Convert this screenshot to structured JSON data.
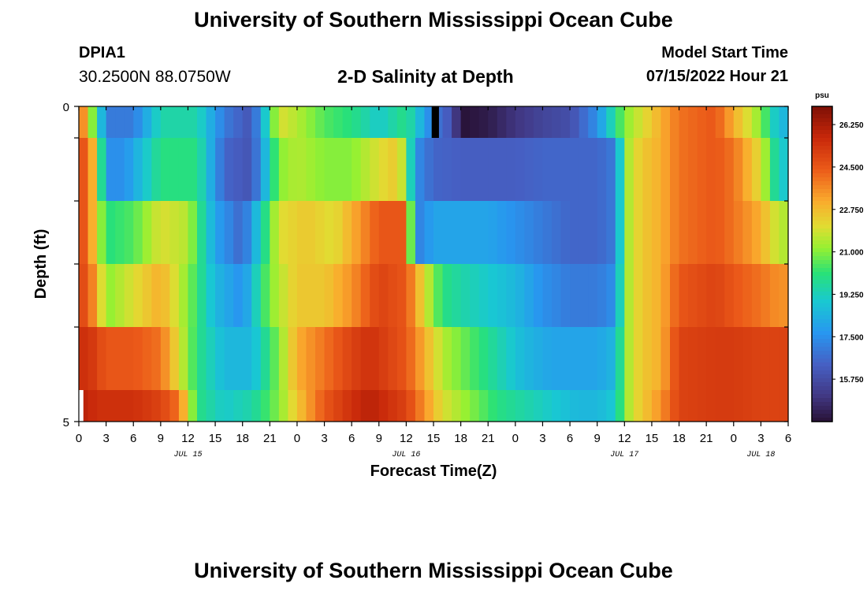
{
  "header": {
    "title": "University of Southern Mississippi Ocean Cube",
    "station": "DPIA1",
    "coords": "30.2500N  88.0750W",
    "subtitle": "2-D Salinity at Depth",
    "model_start_label": "Model Start Time",
    "model_start_value": "07/15/2022 Hour 21"
  },
  "footer": {
    "title": "University of Southern Mississippi Ocean Cube"
  },
  "chart_data": {
    "type": "heatmap",
    "title": "2-D Salinity at Depth",
    "xlabel": "Forecast Time(Z)",
    "ylabel": "Depth (ft)",
    "y_ticks": [
      "0",
      "5"
    ],
    "ylim": [
      0,
      5
    ],
    "x_tick_labels": [
      "0",
      "3",
      "6",
      "9",
      "12",
      "15",
      "18",
      "21",
      "0",
      "3",
      "6",
      "9",
      "12",
      "15",
      "18",
      "21",
      "0",
      "3",
      "6",
      "9",
      "12",
      "15",
      "18",
      "21",
      "0",
      "3",
      "6"
    ],
    "x_hours_range": [
      0,
      78
    ],
    "date_labels": [
      {
        "text": "JUL 15",
        "hour": 12
      },
      {
        "text": "JUL 16",
        "hour": 36
      },
      {
        "text": "JUL 17",
        "hour": 60
      },
      {
        "text": "JUL 18",
        "hour": 75
      }
    ],
    "colorbar": {
      "unit": "psu",
      "min": 14.0,
      "max": 27.0,
      "tick_labels": [
        "26.250",
        "24.500",
        "22.750",
        "21.000",
        "19.250",
        "17.500",
        "15.750"
      ],
      "tick_values": [
        26.25,
        24.5,
        22.75,
        21.0,
        19.25,
        17.5,
        15.75
      ]
    },
    "layers": [
      {
        "depth_range": [
          0.0,
          0.5
        ],
        "hours": [
          0,
          1,
          2,
          3,
          6,
          9,
          13,
          16,
          19,
          22,
          24,
          27,
          30,
          33,
          36,
          38,
          39,
          41,
          42,
          45,
          48,
          51,
          54,
          57,
          60,
          61,
          62,
          64,
          66,
          70,
          72,
          75,
          77,
          78
        ],
        "values": [
          25,
          22,
          20,
          17,
          17,
          19.5,
          19.5,
          17,
          16,
          22,
          21.5,
          20.5,
          20,
          19,
          20,
          18,
          17,
          16,
          14,
          14.3,
          15,
          15.5,
          15.8,
          17.5,
          21,
          21.5,
          22,
          23,
          24,
          24.5,
          23,
          21,
          18.5,
          18.5
        ]
      },
      {
        "depth_range": [
          0.5,
          1.5
        ],
        "hours": [
          0,
          1,
          2,
          3,
          5,
          9,
          13,
          16,
          19,
          22,
          24,
          27,
          30,
          33,
          35,
          36,
          37,
          39,
          42,
          45,
          48,
          51,
          54,
          57,
          59,
          60,
          61,
          62,
          64,
          66,
          70,
          72,
          75,
          77,
          78
        ],
        "values": [
          25,
          24,
          22,
          17.5,
          17.5,
          20,
          20,
          16.5,
          16,
          21,
          21.5,
          21,
          21,
          22,
          22.5,
          21,
          17.5,
          16.5,
          16.3,
          16.3,
          16.3,
          16.5,
          16.5,
          16.5,
          17,
          21,
          22,
          22.5,
          23,
          24,
          24.5,
          24,
          22,
          19,
          19
        ]
      },
      {
        "depth_range": [
          1.5,
          2.5
        ],
        "hours": [
          0,
          1,
          2,
          3,
          6,
          9,
          12,
          15,
          18,
          22,
          25,
          28,
          30,
          33,
          36,
          37,
          39,
          42,
          45,
          48,
          51,
          54,
          57,
          59,
          60,
          61,
          62,
          64,
          66,
          70,
          72,
          75,
          77,
          78
        ],
        "values": [
          25,
          24,
          22,
          20,
          20.5,
          22,
          21.5,
          18,
          16.5,
          22,
          22.5,
          22,
          23,
          24.5,
          24.5,
          17,
          18,
          18,
          18,
          17.5,
          17,
          16.5,
          16.5,
          17,
          21,
          22,
          22.5,
          23,
          24,
          24.5,
          24,
          23,
          21.5,
          21.5
        ]
      },
      {
        "depth_range": [
          2.5,
          3.5
        ],
        "hours": [
          0,
          1,
          2,
          3,
          6,
          9,
          12,
          15,
          18,
          21,
          24,
          27,
          30,
          33,
          36,
          38,
          40,
          42,
          45,
          48,
          51,
          54,
          57,
          59,
          60,
          61,
          62,
          64,
          66,
          70,
          72,
          75,
          77,
          78
        ],
        "values": [
          25,
          24.5,
          23,
          21,
          22,
          23,
          21,
          18.5,
          17.5,
          21,
          22.5,
          22.5,
          23.5,
          25,
          24.5,
          22,
          20,
          19.5,
          19,
          18.5,
          17.5,
          17,
          17,
          17.5,
          21,
          22,
          22.5,
          23,
          24.5,
          25,
          24.5,
          24,
          23.5,
          23.5
        ]
      },
      {
        "depth_range": [
          3.5,
          4.5
        ],
        "hours": [
          0,
          1,
          2,
          3,
          6,
          9,
          11,
          13,
          16,
          19,
          22,
          24,
          27,
          30,
          32,
          36,
          38,
          40,
          43,
          46,
          49,
          52,
          55,
          57,
          59,
          60,
          61,
          62,
          64,
          66,
          70,
          72,
          75,
          77,
          78
        ],
        "values": [
          25.5,
          25.5,
          25,
          24.5,
          24.5,
          24,
          22,
          20,
          18.5,
          18.5,
          21,
          23,
          24,
          25,
          25.5,
          24.5,
          23,
          21.5,
          20.5,
          19.5,
          18.5,
          18,
          18,
          18,
          18.5,
          21,
          22,
          22.5,
          23,
          25,
          25.2,
          25.2,
          25,
          25,
          25
        ]
      },
      {
        "depth_range": [
          4.5,
          5.0
        ],
        "hours": [
          0,
          1,
          2,
          3,
          6,
          9,
          11,
          12,
          13,
          16,
          19,
          22,
          24,
          27,
          30,
          32,
          36,
          38,
          40,
          43,
          46,
          49,
          52,
          55,
          57,
          59,
          60,
          61,
          62,
          64,
          66,
          70,
          72,
          75,
          77,
          78
        ],
        "values": [
          26,
          25.8,
          25.5,
          25.5,
          25.5,
          25,
          24,
          22,
          20,
          19,
          19.5,
          21,
          22.5,
          24.5,
          25.5,
          26,
          25,
          23.5,
          22,
          21,
          20,
          19.5,
          19,
          18.5,
          18.5,
          19,
          21,
          22,
          22.5,
          23.5,
          25,
          25.2,
          25.2,
          25,
          25,
          25
        ]
      }
    ],
    "overlays": [
      {
        "type": "white-gap",
        "hour_range": [
          0,
          0.5
        ],
        "depth_range": [
          4.5,
          5.0
        ]
      },
      {
        "type": "black-column",
        "hour_range": [
          38.8,
          39.6
        ],
        "depth_range": [
          0.0,
          0.5
        ]
      }
    ]
  }
}
